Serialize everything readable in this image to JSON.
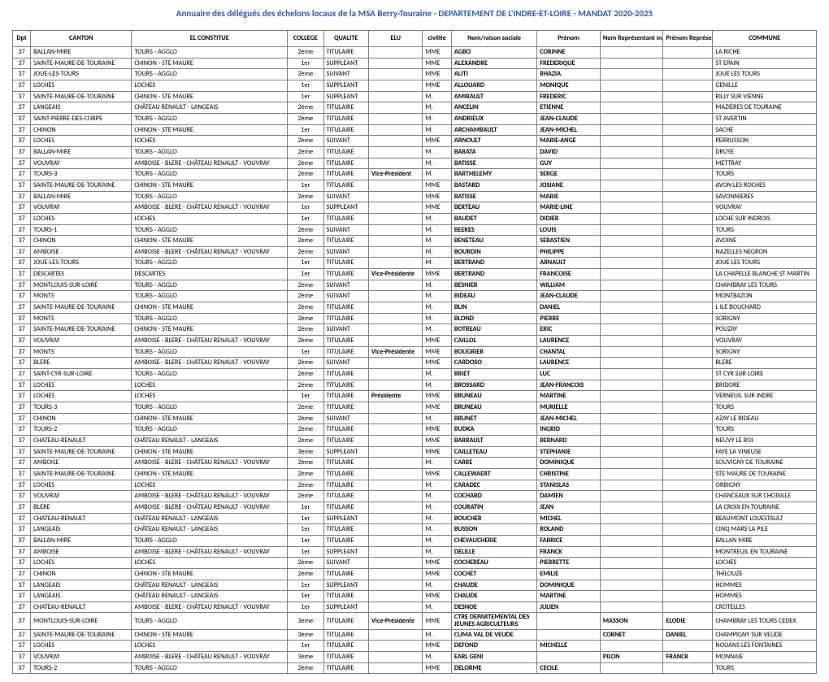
{
  "title": "Annuaire des délégués des échelons locaux de la MSA Berry-Touraine - DEPARTEMENT DE L'INDRE-ET-LOIRE - MANDAT 2020-2025",
  "columns": [
    "Dpt",
    "CANTON",
    "EL CONSTITUE",
    "COLLEGE",
    "QUALITE",
    "ELU",
    "civilite",
    "Nom/raison sociale",
    "Prénom",
    "Nom Représentant mandaire",
    "Prénom Représentant",
    "COMMUNE"
  ],
  "rows": [
    [
      "37",
      "BALLAN-MIRE",
      "TOURS - AGGLO",
      "2ème",
      "TITULAIRE",
      "",
      "MME",
      "AGBO",
      "CORINNE",
      "",
      "",
      "LA RICHE"
    ],
    [
      "37",
      "SAINTE-MAURE-DE-TOURAINE",
      "CHINON - STE MAURE",
      "1er",
      "SUPPLEANT",
      "",
      "MME",
      "ALEXANDRE",
      "FREDERIQUE",
      "",
      "",
      "ST EPAIN"
    ],
    [
      "37",
      "JOUE-LES-TOURS",
      "TOURS - AGGLO",
      "2ème",
      "SUIVANT",
      "",
      "MME",
      "ALITI",
      "RHAZIA",
      "",
      "",
      "JOUE LES TOURS"
    ],
    [
      "37",
      "LOCHES",
      "LOCHES",
      "1er",
      "SUPPLEANT",
      "",
      "MME",
      "ALLOUARD",
      "MONIQUE",
      "",
      "",
      "GENILLE"
    ],
    [
      "37",
      "SAINTE-MAURE-DE-TOURAINE",
      "CHINON - STE MAURE",
      "1er",
      "SUPPLEANT",
      "",
      "M.",
      "AMIRAULT",
      "FREDERIC",
      "",
      "",
      "RILLY SUR VIENNE"
    ],
    [
      "37",
      "LANGEAIS",
      "CHÂTEAU RENAULT - LANGEAIS",
      "2ème",
      "TITULAIRE",
      "",
      "M.",
      "ANCELIN",
      "ETIENNE",
      "",
      "",
      "MAZIERES DE TOURAINE"
    ],
    [
      "37",
      "SAINT-PIERRE-DES-CORPS",
      "TOURS - AGGLO",
      "2ème",
      "TITULAIRE",
      "",
      "M.",
      "ANDRIEUX",
      "JEAN-CLAUDE",
      "",
      "",
      "ST AVERTIN"
    ],
    [
      "37",
      "CHINON",
      "CHINON - STE MAURE",
      "1er",
      "TITULAIRE",
      "",
      "M.",
      "ARCHAMBAULT",
      "JEAN-MICHEL",
      "",
      "",
      "SACHE"
    ],
    [
      "37",
      "LOCHES",
      "LOCHES",
      "2ème",
      "SUIVANT",
      "",
      "MME",
      "ARNOULT",
      "MARIE-ANGE",
      "",
      "",
      "PERRUSSON"
    ],
    [
      "37",
      "BALLAN-MIRE",
      "TOURS - AGGLO",
      "2ème",
      "TITULAIRE",
      "",
      "M.",
      "BARATA",
      "DAVID",
      "",
      "",
      "DRUYE"
    ],
    [
      "37",
      "VOUVRAY",
      "AMBOISE - BLERE - CHÂTEAU RENAULT - VOUVRAY",
      "2ème",
      "TITULAIRE",
      "",
      "M.",
      "BATISSE",
      "GUY",
      "",
      "",
      "METTRAY"
    ],
    [
      "37",
      "TOURS-3",
      "TOURS - AGGLO",
      "2ème",
      "TITULAIRE",
      "Vice-Président",
      "M.",
      "BARTHELEMY",
      "SERGE",
      "",
      "",
      "TOURS"
    ],
    [
      "37",
      "SAINTE-MAURE-DE-TOURAINE",
      "CHINON - STE MAURE",
      "1er",
      "TITULAIRE",
      "",
      "MME",
      "BASTARD",
      "JOSIANE",
      "",
      "",
      "AVON LES ROCHES"
    ],
    [
      "37",
      "BALLAN-MIRE",
      "TOURS - AGGLO",
      "2ème",
      "SUIVANT",
      "",
      "MME",
      "BATISSE",
      "MARIE",
      "",
      "",
      "SAVONNIERES"
    ],
    [
      "37",
      "VOUVRAY",
      "AMBOISE - BLERE - CHÂTEAU RENAULT - VOUVRAY",
      "1er",
      "SUPPLEANT",
      "",
      "MME",
      "BERTEAU",
      "MARIE-LINE",
      "",
      "",
      "VOUVRAY"
    ],
    [
      "37",
      "LOCHES",
      "LOCHES",
      "1er",
      "TITULAIRE",
      "",
      "M.",
      "BAUDET",
      "DIDIER",
      "",
      "",
      "LOCHE SUR INDROIS"
    ],
    [
      "37",
      "TOURS-1",
      "TOURS - AGGLO",
      "2ème",
      "SUIVANT",
      "",
      "M.",
      "BEEKES",
      "LOUIS",
      "",
      "",
      "TOURS"
    ],
    [
      "37",
      "CHINON",
      "CHINON - STE MAURE",
      "2ème",
      "TITULAIRE",
      "",
      "M.",
      "BENETEAU",
      "SEBASTIEN",
      "",
      "",
      "AVOINE"
    ],
    [
      "37",
      "AMBOISE",
      "AMBOISE - BLERE - CHÂTEAU RENAULT - VOUVRAY",
      "2ème",
      "SUIVANT",
      "",
      "M.",
      "BOURDIN",
      "PHILIPPE",
      "",
      "",
      "NAZELLES NEGRON"
    ],
    [
      "37",
      "JOUE-LES-TOURS",
      "TOURS - AGGLO",
      "1er",
      "TITULAIRE",
      "",
      "M.",
      "BERTRAND",
      "ARNAULT",
      "",
      "",
      "JOUE LES TOURS"
    ],
    [
      "37",
      "DESCARTES",
      "DESCARTES",
      "1er",
      "TITULAIRE",
      "Vice-Présidente",
      "MME",
      "BERTRAND",
      "FRANCOISE",
      "",
      "",
      "LA CHAPELLE BLANCHE ST MARTIN"
    ],
    [
      "37",
      "MONTLOUIS-SUR-LOIRE",
      "TOURS - AGGLO",
      "2ème",
      "SUIVANT",
      "",
      "M.",
      "BESNIER",
      "WILLIAM",
      "",
      "",
      "CHAMBRAY LES TOURS"
    ],
    [
      "37",
      "MONTS",
      "TOURS - AGGLO",
      "2ème",
      "SUIVANT",
      "",
      "M.",
      "BIDEAU",
      "JEAN-CLAUDE",
      "",
      "",
      "MONTBAZON"
    ],
    [
      "37",
      "SAINTE-MAURE-DE-TOURAINE",
      "CHINON - STE MAURE",
      "2ème",
      "TITULAIRE",
      "",
      "M.",
      "BLIN",
      "DANIEL",
      "",
      "",
      "L ILE BOUCHARD"
    ],
    [
      "37",
      "MONTS",
      "TOURS - AGGLO",
      "2ème",
      "TITULAIRE",
      "",
      "M.",
      "BLOND",
      "PIERRE",
      "",
      "",
      "SORIGNY"
    ],
    [
      "37",
      "SAINTE-MAURE-DE-TOURAINE",
      "CHINON - STE MAURE",
      "2ème",
      "SUIVANT",
      "",
      "M.",
      "BOTREAU",
      "ERIC",
      "",
      "",
      "POUZAY"
    ],
    [
      "37",
      "VOUVRAY",
      "AMBOISE - BLERE - CHÂTEAU RENAULT - VOUVRAY",
      "2ème",
      "TITULAIRE",
      "",
      "MME",
      "CAILLOL",
      "LAURENCE",
      "",
      "",
      "VOUVRAY"
    ],
    [
      "37",
      "MONTS",
      "TOURS - AGGLO",
      "1er",
      "TITULAIRE",
      "Vice-Présidente",
      "MME",
      "BOUGRIER",
      "CHANTAL",
      "",
      "",
      "SORIGNY"
    ],
    [
      "37",
      "BLERE",
      "AMBOISE - BLERE - CHÂTEAU RENAULT - VOUVRAY",
      "2ème",
      "SUIVANT",
      "",
      "MME",
      "CARDOSO",
      "LAURENCE",
      "",
      "",
      "BLERE"
    ],
    [
      "37",
      "SAINT-CYR-SUR-LOIRE",
      "TOURS - AGGLO",
      "2ème",
      "TITULAIRE",
      "",
      "M.",
      "BRIET",
      "LUC",
      "",
      "",
      "ST CYR SUR LOIRE"
    ],
    [
      "37",
      "LOCHES",
      "LOCHES",
      "2ème",
      "TITULAIRE",
      "",
      "M.",
      "BROSSARD",
      "JEAN-FRANCOIS",
      "",
      "",
      "BRIDORE"
    ],
    [
      "37",
      "LOCHES",
      "LOCHES",
      "1er",
      "TITULAIRE",
      "Présidente",
      "MME",
      "BRUNEAU",
      "MARTINE",
      "",
      "",
      "VERNEUIL SUR INDRE"
    ],
    [
      "37",
      "TOURS-3",
      "TOURS - AGGLO",
      "2ème",
      "TITULAIRE",
      "",
      "MME",
      "BRUNEAU",
      "MURIELLE",
      "",
      "",
      "TOURS"
    ],
    [
      "37",
      "CHINON",
      "CHINON - STE MAURE",
      "2ème",
      "SUIVANT",
      "",
      "M.",
      "BRUNET",
      "JEAN-MICHEL",
      "",
      "",
      "AZAY LE RIDEAU"
    ],
    [
      "37",
      "TOURS-2",
      "TOURS - AGGLO",
      "2ème",
      "TITULAIRE",
      "",
      "MME",
      "BUDKA",
      "INGRID",
      "",
      "",
      "TOURS"
    ],
    [
      "37",
      "CHATEAU-RENAULT",
      "CHÂTEAU RENAULT - LANGEAIS",
      "2ème",
      "TITULAIRE",
      "",
      "MME",
      "BARRAULT",
      "BERNARD",
      "",
      "",
      "NEUVY LE ROI"
    ],
    [
      "37",
      "SAINTE-MAURE-DE-TOURAINE",
      "CHINON - STE MAURE",
      "3ème",
      "SUPPLEANT",
      "",
      "MME",
      "CAILLETEAU",
      "STEPHANIE",
      "",
      "",
      "FAYE LA VINEUSE"
    ],
    [
      "37",
      "AMBOISE",
      "AMBOISE - BLERE - CHÂTEAU RENAULT - VOUVRAY",
      "2ème",
      "TITULAIRE",
      "",
      "M.",
      "CARRE",
      "DOMINIQUE",
      "",
      "",
      "SOUVIGNY DE TOURAINE"
    ],
    [
      "37",
      "SAINTE-MAURE-DE-TOURAINE",
      "CHINON - STE MAURE",
      "2ème",
      "TITULAIRE",
      "",
      "MME",
      "CALLEWAERT",
      "CHRISTINE",
      "",
      "",
      "STE MAURE DE TOURAINE"
    ],
    [
      "37",
      "LOCHES",
      "LOCHES",
      "2ème",
      "TITULAIRE",
      "",
      "M.",
      "CARADEC",
      "STANISLAS",
      "",
      "",
      "ORBIGNY"
    ],
    [
      "37",
      "VOUVRAY",
      "AMBOISE - BLERE - CHÂTEAU RENAULT - VOUVRAY",
      "2ème",
      "TITULAIRE",
      "",
      "M.",
      "COCHARD",
      "DAMIEN",
      "",
      "",
      "CHANCEAUX SUR CHOISILLE"
    ],
    [
      "37",
      "BLERE",
      "AMBOISE - BLERE - CHÂTEAU RENAULT - VOUVRAY",
      "1er",
      "TITULAIRE",
      "",
      "M.",
      "COURATIN",
      "JEAN",
      "",
      "",
      "LA CROIX EN TOURAINE"
    ],
    [
      "37",
      "CHATEAU-RENAULT",
      "CHÂTEAU RENAULT - LANGEAIS",
      "1er",
      "SUPPLEANT",
      "",
      "M.",
      "BOUCHER",
      "MICHEL",
      "",
      "",
      "BEAUMONT LOUESTAULT"
    ],
    [
      "37",
      "LANGEAIS",
      "CHÂTEAU RENAULT - LANGEAIS",
      "1er",
      "TITULAIRE",
      "",
      "M.",
      "BUSSON",
      "ROLAND",
      "",
      "",
      "CINQ MARS LA PILE"
    ],
    [
      "37",
      "BALLAN-MIRE",
      "TOURS - AGGLO",
      "1er",
      "TITULAIRE",
      "",
      "M.",
      "CHEVAUCHERIE",
      "FABRICE",
      "",
      "",
      "BALLAN MIRE"
    ],
    [
      "37",
      "AMBOISE",
      "AMBOISE - BLERE - CHÂTEAU RENAULT - VOUVRAY",
      "1er",
      "SUPPLEANT",
      "",
      "M.",
      "DELILLE",
      "FRANCK",
      "",
      "",
      "MONTREUIL EN TOURAINE"
    ],
    [
      "37",
      "LOCHES",
      "LOCHES",
      "2ème",
      "SUIVANT",
      "",
      "MME",
      "COCHEREAU",
      "PIERRETTE",
      "",
      "",
      "LOCHES"
    ],
    [
      "37",
      "CHINON",
      "CHINON - STE MAURE",
      "2ème",
      "TITULAIRE",
      "",
      "MME",
      "COCHET",
      "EMILIE",
      "",
      "",
      "THILOUZE"
    ],
    [
      "37",
      "LANGEAIS",
      "CHÂTEAU RENAULT - LANGEAIS",
      "1er",
      "SUPPLEANT",
      "",
      "M.",
      "CHAUDE",
      "DOMINIQUE",
      "",
      "",
      "HOMMES"
    ],
    [
      "37",
      "LANGEAIS",
      "CHÂTEAU RENAULT - LANGEAIS",
      "1er",
      "TITULAIRE",
      "",
      "MME",
      "CHAUDE",
      "MARTINE",
      "",
      "",
      "HOMMES"
    ],
    [
      "37",
      "CHATEAU-RENAULT",
      "AMBOISE - BLERE - CHÂTEAU RENAULT - VOUVRAY",
      "1er",
      "SUPPLEANT",
      "",
      "M.",
      "DESNOE",
      "JULIEN",
      "",
      "",
      "CROTELLES"
    ],
    [
      "37",
      "MONTLOUIS-SUR-LOIRE",
      "TOURS - AGGLO",
      "3ème",
      "TITULAIRE",
      "Vice-Présidente",
      "MME",
      "CTRE DEPARTEMENTAL DES JEUNES AGRICULTEURS",
      "",
      "MASSON",
      "ELODIE",
      "CHAMBRAY LES TOURS CEDEX"
    ],
    [
      "37",
      "SAINTE-MAURE-DE-TOURAINE",
      "CHINON - STE MAURE",
      "3ème",
      "TITULAIRE",
      "",
      "M.",
      "CUMA VAL DE VEUDE",
      "",
      "CORNET",
      "DANIEL",
      "CHAMPIGNY SUR VEUDE"
    ],
    [
      "37",
      "LOCHES",
      "LOCHES",
      "1er",
      "TITULAIRE",
      "",
      "MME",
      "DEFOND",
      "MICHELLE",
      "",
      "",
      "NOUANS LES FONTAINES"
    ],
    [
      "37",
      "VOUVRAY",
      "AMBOISE - BLERE - CHÂTEAU RENAULT - VOUVRAY",
      "3ème",
      "TITULAIRE",
      "",
      "M.",
      "EARL GENI",
      "",
      "PILON",
      "FRANCK",
      "MONNAIE"
    ],
    [
      "37",
      "TOURS-2",
      "TOURS - AGGLO",
      "2ème",
      "TITULAIRE",
      "",
      "MME",
      "DELORME",
      "CECILE",
      "",
      "",
      "TOURS"
    ]
  ],
  "tallRows": [
    51
  ],
  "col_classes": [
    "c-dpt",
    "c-cant",
    "c-const",
    "c-coll",
    "c-qual",
    "c-elu",
    "c-civ",
    "c-nom",
    "c-pre",
    "c-repn",
    "c-repp",
    "c-comm"
  ],
  "bold_cols": [
    5,
    7,
    8,
    9,
    10
  ]
}
